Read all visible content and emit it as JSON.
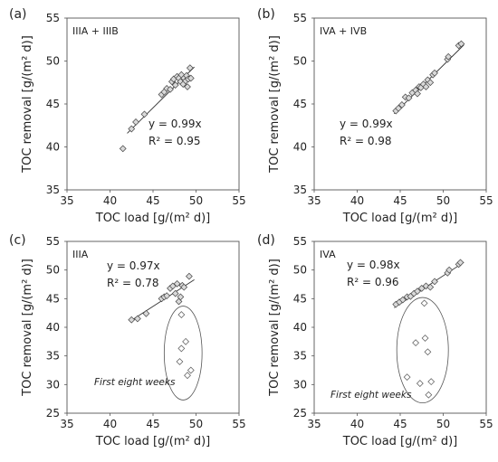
{
  "chart_data": [
    {
      "panel": "(a)",
      "tag": "IIIA + IIIB",
      "type": "scatter",
      "xlabel": "TOC load [g/(m² d)]",
      "ylabel": "TOC removal [g/(m² d)]",
      "xlim": [
        35,
        55
      ],
      "ylim": [
        35,
        55
      ],
      "xticks": [
        "35",
        "40",
        "45",
        "50",
        "55"
      ],
      "yticks": [
        "35",
        "40",
        "45",
        "50",
        "55"
      ],
      "equation": "y = 0.99x",
      "r2": "R² = 0.95",
      "fit_slope": 0.99,
      "fit_x": [
        42.0,
        49.8
      ],
      "points": [
        [
          41.5,
          39.8
        ],
        [
          42.5,
          42.1
        ],
        [
          43.0,
          42.9
        ],
        [
          44.0,
          43.8
        ],
        [
          46.0,
          46.1
        ],
        [
          46.3,
          46.4
        ],
        [
          46.6,
          46.8
        ],
        [
          47.0,
          46.7
        ],
        [
          47.2,
          47.6
        ],
        [
          47.4,
          47.9
        ],
        [
          47.6,
          47.2
        ],
        [
          47.8,
          48.2
        ],
        [
          48.0,
          48.0
        ],
        [
          48.2,
          47.6
        ],
        [
          48.3,
          48.4
        ],
        [
          48.5,
          47.3
        ],
        [
          48.6,
          48.0
        ],
        [
          48.8,
          47.7
        ],
        [
          48.9,
          48.3
        ],
        [
          49.0,
          47.0
        ],
        [
          49.1,
          47.9
        ],
        [
          49.3,
          49.2
        ],
        [
          49.4,
          48.0
        ]
      ]
    },
    {
      "panel": "(b)",
      "tag": "IVA + IVB",
      "type": "scatter",
      "xlabel": "TOC load [g/(m² d)]",
      "ylabel": "TOC removal [g/(m² d)]",
      "xlim": [
        35,
        55
      ],
      "ylim": [
        35,
        55
      ],
      "xticks": [
        "35",
        "40",
        "45",
        "50",
        "55"
      ],
      "yticks": [
        "35",
        "40",
        "45",
        "50",
        "55"
      ],
      "equation": "y = 0.99x",
      "r2": "R² = 0.98",
      "fit_slope": 0.99,
      "fit_x": [
        44.3,
        52.4
      ],
      "points": [
        [
          44.5,
          44.2
        ],
        [
          44.8,
          44.5
        ],
        [
          45.2,
          44.9
        ],
        [
          45.6,
          45.8
        ],
        [
          46.0,
          45.7
        ],
        [
          46.4,
          46.3
        ],
        [
          46.8,
          46.6
        ],
        [
          47.0,
          46.2
        ],
        [
          47.2,
          47.0
        ],
        [
          47.4,
          46.9
        ],
        [
          47.7,
          47.3
        ],
        [
          48.0,
          47.0
        ],
        [
          48.2,
          47.8
        ],
        [
          48.5,
          47.5
        ],
        [
          48.8,
          48.4
        ],
        [
          49.0,
          48.6
        ],
        [
          50.5,
          50.2
        ],
        [
          50.6,
          50.5
        ],
        [
          51.8,
          51.8
        ],
        [
          52.1,
          52.0
        ]
      ]
    },
    {
      "panel": "(c)",
      "tag": "IIIA",
      "type": "scatter",
      "xlabel": "TOC load [g/(m² d)]",
      "ylabel": "TOC removal [g/(m² d)]",
      "xlim": [
        35,
        55
      ],
      "ylim": [
        25,
        55
      ],
      "xticks": [
        "35",
        "40",
        "45",
        "50",
        "55"
      ],
      "yticks": [
        "25",
        "30",
        "35",
        "40",
        "45",
        "50",
        "55"
      ],
      "equation": "y = 0.97x",
      "r2": "R² = 0.78",
      "annotation": "First eight weeks",
      "fit_slope": 0.97,
      "fit_x": [
        42.5,
        49.8
      ],
      "points": [
        [
          42.5,
          41.3
        ],
        [
          43.2,
          41.5
        ],
        [
          44.2,
          42.4
        ],
        [
          46.0,
          45.0
        ],
        [
          46.3,
          45.3
        ],
        [
          46.6,
          45.5
        ],
        [
          47.0,
          46.8
        ],
        [
          47.3,
          47.2
        ],
        [
          47.6,
          45.9
        ],
        [
          47.8,
          47.6
        ],
        [
          48.0,
          44.5
        ],
        [
          48.2,
          45.3
        ],
        [
          48.4,
          47.3
        ],
        [
          48.6,
          47.0
        ],
        [
          49.2,
          48.9
        ]
      ],
      "outliers": [
        [
          48.3,
          42.2
        ],
        [
          48.8,
          37.5
        ],
        [
          48.3,
          36.3
        ],
        [
          48.1,
          34.0
        ],
        [
          49.4,
          32.5
        ],
        [
          49.0,
          31.6
        ]
      ],
      "ellipse": {
        "cx": 48.5,
        "cy": 35.5,
        "rx": 2.2,
        "ry": 8.2
      }
    },
    {
      "panel": "(d)",
      "tag": "IVA",
      "type": "scatter",
      "xlabel": "TOC load [g/(m² d)]",
      "ylabel": "TOC removal [g/(m² d)]",
      "xlim": [
        35,
        55
      ],
      "ylim": [
        25,
        55
      ],
      "xticks": [
        "35",
        "40",
        "45",
        "50",
        "55"
      ],
      "yticks": [
        "25",
        "30",
        "35",
        "40",
        "45",
        "50",
        "55"
      ],
      "equation": "y = 0.98x",
      "r2": "R² = 0.96",
      "annotation": "First eight weeks",
      "fit_slope": 0.98,
      "fit_x": [
        44.3,
        52.4
      ],
      "points": [
        [
          44.5,
          44.0
        ],
        [
          44.9,
          44.4
        ],
        [
          45.3,
          44.8
        ],
        [
          45.8,
          45.3
        ],
        [
          46.2,
          45.4
        ],
        [
          46.6,
          45.9
        ],
        [
          47.0,
          46.3
        ],
        [
          47.5,
          46.8
        ],
        [
          48.0,
          47.2
        ],
        [
          48.5,
          47.0
        ],
        [
          49.0,
          48.0
        ],
        [
          50.5,
          49.5
        ],
        [
          50.7,
          50.0
        ],
        [
          51.8,
          51.0
        ],
        [
          52.0,
          51.3
        ]
      ],
      "outliers": [
        [
          47.8,
          44.2
        ],
        [
          46.8,
          37.3
        ],
        [
          47.9,
          38.1
        ],
        [
          48.2,
          35.7
        ],
        [
          45.8,
          31.3
        ],
        [
          47.3,
          30.2
        ],
        [
          48.6,
          30.5
        ],
        [
          48.3,
          28.2
        ]
      ],
      "ellipse": {
        "cx": 47.6,
        "cy": 36.0,
        "rx": 3.0,
        "ry": 9.2
      }
    }
  ]
}
